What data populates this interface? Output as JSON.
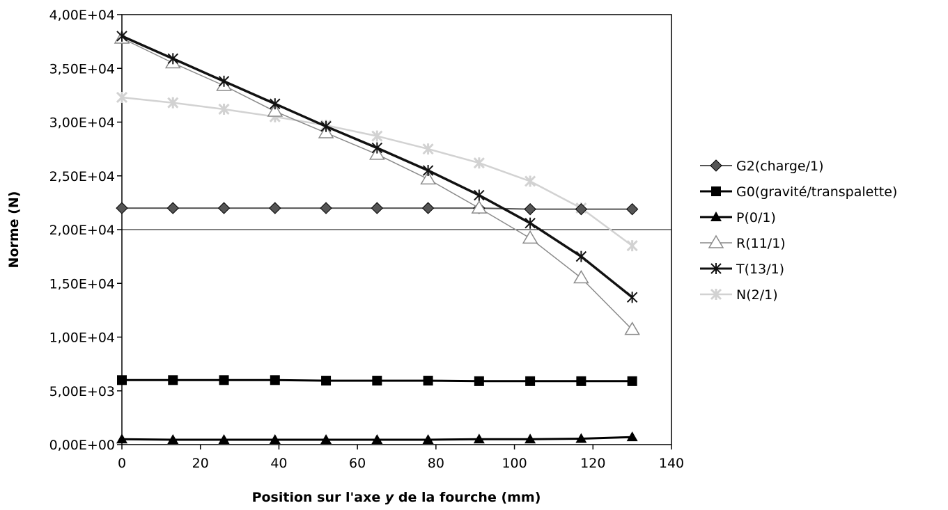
{
  "chart_data": {
    "type": "line",
    "title": "",
    "xlabel": "Position sur l'axe y de la fourche (mm)",
    "xlabel_parts": {
      "before": "Position sur l'axe ",
      "italic": "y",
      "after": " de la fourche (mm)"
    },
    "ylabel": "Norme (N)",
    "xlim": [
      0,
      140
    ],
    "ylim": [
      0,
      40000
    ],
    "x_ticks": [
      0,
      20,
      40,
      60,
      80,
      100,
      120,
      140
    ],
    "x_tick_labels": [
      "0",
      "20",
      "40",
      "60",
      "80",
      "100",
      "120",
      "140"
    ],
    "y_ticks": [
      0,
      5000,
      10000,
      15000,
      20000,
      25000,
      30000,
      35000,
      40000
    ],
    "y_tick_labels": [
      "0,00E+00",
      "5,00E+03",
      "1,00E+04",
      "1,50E+04",
      "2,00E+04",
      "2,50E+04",
      "3,00E+04",
      "3,50E+04",
      "4,00E+04"
    ],
    "gridlines": "horizontal, at 20000 and 40000",
    "legend_position": "right",
    "x": [
      0,
      13,
      26,
      39,
      52,
      65,
      78,
      91,
      104,
      117,
      130
    ],
    "series": [
      {
        "name": "G2(charge/1)",
        "marker": "diamond",
        "color": "#555555",
        "line_width": 2,
        "values": [
          22000,
          22000,
          22000,
          22000,
          22000,
          22000,
          22000,
          22000,
          21900,
          21900,
          21900
        ]
      },
      {
        "name": "G0(gravité/transpalette)",
        "marker": "square",
        "color": "#000000",
        "line_width": 3,
        "values": [
          6000,
          6000,
          6000,
          6000,
          5950,
          5950,
          5950,
          5900,
          5900,
          5900,
          5900
        ]
      },
      {
        "name": "P(0/1)",
        "marker": "triangle",
        "color": "#000000",
        "line_width": 3,
        "values": [
          500,
          450,
          450,
          450,
          450,
          450,
          450,
          500,
          500,
          550,
          700
        ]
      },
      {
        "name": "R(11/1)",
        "marker": "triangle-open",
        "color": "#8a8a8a",
        "line_width": 1.5,
        "values": [
          37800,
          35500,
          33400,
          31000,
          29000,
          27000,
          24700,
          22000,
          19200,
          15500,
          10700
        ]
      },
      {
        "name": "T(13/1)",
        "marker": "star",
        "color": "#111111",
        "line_width": 3.5,
        "values": [
          38000,
          35900,
          33800,
          31700,
          29600,
          27600,
          25500,
          23200,
          20600,
          17500,
          13700
        ]
      },
      {
        "name": "N(2/1)",
        "marker": "star",
        "color": "#d2d2d2",
        "line_width": 2.5,
        "values": [
          32300,
          31800,
          31200,
          30500,
          29700,
          28700,
          27500,
          26200,
          24500,
          22000,
          18500
        ]
      }
    ]
  }
}
